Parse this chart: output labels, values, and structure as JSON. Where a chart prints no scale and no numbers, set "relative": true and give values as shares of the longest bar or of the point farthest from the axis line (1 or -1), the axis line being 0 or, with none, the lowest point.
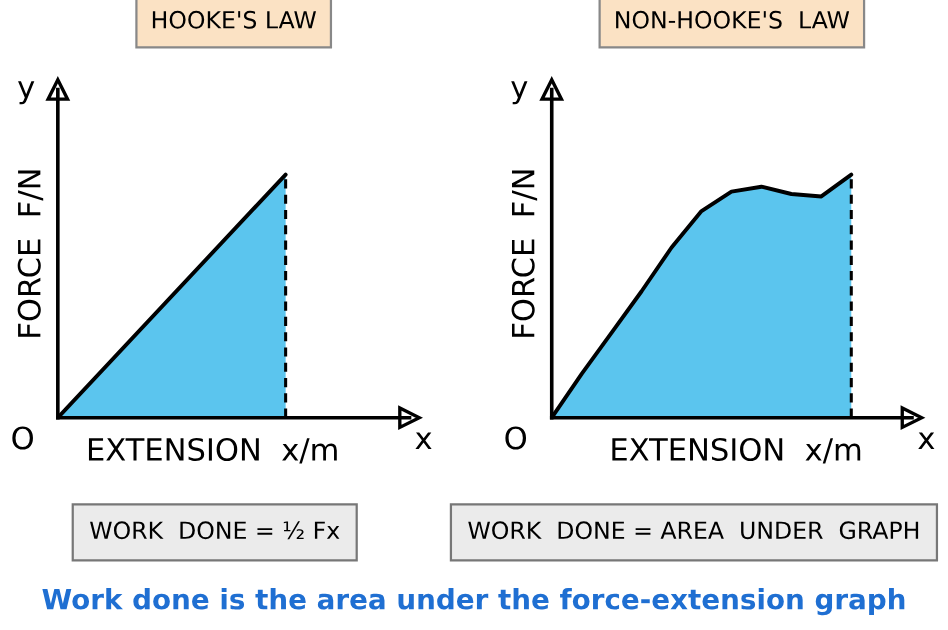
{
  "chart_data": [
    {
      "type": "area",
      "title": "HOOKE'S LAW",
      "xlabel": "EXTENSION  x/m",
      "ylabel": "FORCE  F/N",
      "relative": true,
      "categories": [
        null,
        null
      ],
      "series": [
        {
          "color": "#5bc5ee",
          "values": [
            0,
            1
          ]
        }
      ],
      "annotations": [
        "y",
        "x",
        "O",
        "WORK  DONE = ½ Fx"
      ]
    },
    {
      "type": "area",
      "title": "NON-HOOKE'S  LAW",
      "xlabel": "EXTENSION  x/m",
      "ylabel": "FORCE  F/N",
      "relative": true,
      "categories": [
        null,
        null,
        null,
        null,
        null,
        null,
        null,
        null,
        null,
        null,
        null
      ],
      "series": [
        {
          "color": "#5bc5ee",
          "values": [
            0,
            0.18,
            0.35,
            0.52,
            0.7,
            0.85,
            0.93,
            0.95,
            0.92,
            0.91,
            1
          ]
        }
      ],
      "annotations": [
        "y",
        "x",
        "O",
        "WORK  DONE = AREA  UNDER  GRAPH",
        "Work done is the area under the force-extension graph"
      ]
    }
  ]
}
